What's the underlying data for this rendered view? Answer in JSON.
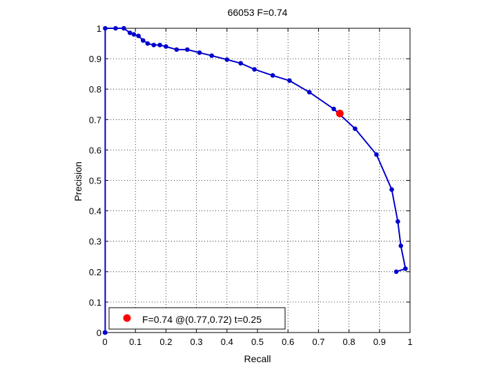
{
  "chart_data": {
    "type": "line",
    "title": "66053 F=0.74",
    "xlabel": "Recall",
    "ylabel": "Precision",
    "xlim": [
      0,
      1
    ],
    "ylim": [
      0,
      1
    ],
    "grid": true,
    "legend_position": "bottom-left",
    "xticks": [
      "0",
      "0.1",
      "0.2",
      "0.3",
      "0.4",
      "0.5",
      "0.6",
      "0.7",
      "0.8",
      "0.9",
      "1"
    ],
    "yticks": [
      "0",
      "0.1",
      "0.2",
      "0.3",
      "0.4",
      "0.5",
      "0.6",
      "0.7",
      "0.8",
      "0.9",
      "1"
    ],
    "series": [
      {
        "color": "#0000cc",
        "x": [
          0.0,
          0.001,
          0.001,
          0.035,
          0.062,
          0.082,
          0.095,
          0.11,
          0.125,
          0.14,
          0.16,
          0.18,
          0.2,
          0.235,
          0.27,
          0.31,
          0.35,
          0.4,
          0.445,
          0.49,
          0.55,
          0.605,
          0.67,
          0.75,
          0.82,
          0.89,
          0.94,
          0.96,
          0.97,
          0.985,
          0.955
        ],
        "y": [
          0.0,
          0.0,
          1.0,
          1.0,
          1.0,
          0.985,
          0.98,
          0.975,
          0.96,
          0.95,
          0.945,
          0.945,
          0.94,
          0.93,
          0.93,
          0.92,
          0.91,
          0.897,
          0.885,
          0.865,
          0.845,
          0.828,
          0.79,
          0.735,
          0.67,
          0.585,
          0.47,
          0.365,
          0.285,
          0.21,
          0.2
        ]
      }
    ],
    "highlight": {
      "x": 0.77,
      "y": 0.72,
      "color": "#ff0000"
    },
    "legend": {
      "label": "F=0.74 @(0.77,0.72) t=0.25",
      "color": "#ff0000"
    }
  }
}
